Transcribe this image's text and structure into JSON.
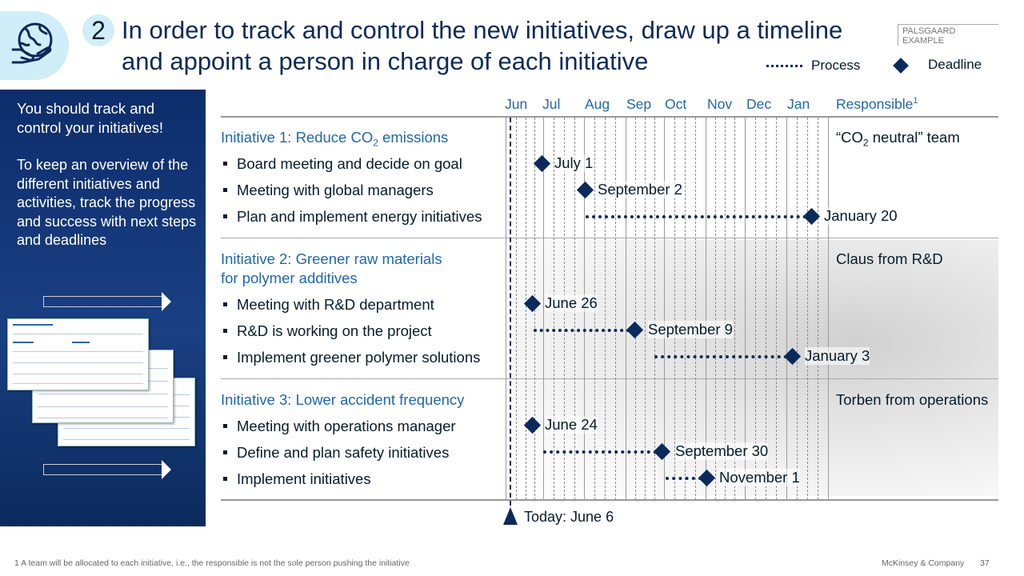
{
  "header": {
    "step_number": "2",
    "title": "In order to track and control the new initiatives, draw up a timeline and appoint a person in charge of each initiative",
    "tag": "PALSGAARD EXAMPLE",
    "icon": "globe-hand-icon"
  },
  "legend": {
    "process_label": "Process",
    "deadline_label": "Deadline"
  },
  "sidebar": {
    "heading": "You should track and control your initiatives!",
    "text": "To keep an overview of the different initiatives and activities, track the progress and success with next steps and deadlines"
  },
  "timeline": {
    "months": [
      "Jun",
      "Jul",
      "Aug",
      "Sep",
      "Oct",
      "Nov",
      "Dec",
      "Jan"
    ],
    "responsible_header": "Responsible",
    "responsible_footnote_marker": "1",
    "today_label": "Today: June 6"
  },
  "initiatives": [
    {
      "title_pre": "Initiative 1: Reduce CO",
      "title_sub": "2",
      "title_post": " emissions",
      "responsible_pre": "“CO",
      "responsible_sub": "2",
      "responsible_post": " neutral” team",
      "tasks": [
        {
          "label": "Board meeting and decide on goal",
          "deadline": "July 1"
        },
        {
          "label": "Meeting with global managers",
          "deadline": "September 2"
        },
        {
          "label": "Plan and implement energy initiatives",
          "deadline": "January 20"
        }
      ]
    },
    {
      "title_line1": "Initiative 2: Greener raw materials",
      "title_line2": "for polymer additives",
      "responsible": "Claus from R&D",
      "tasks": [
        {
          "label": "Meeting with R&D department",
          "deadline": "June 26"
        },
        {
          "label": "R&D is working on the project",
          "deadline": "September 9"
        },
        {
          "label": "Implement greener polymer solutions",
          "deadline": "January 3"
        }
      ]
    },
    {
      "title": "Initiative 3: Lower accident frequency",
      "responsible": "Torben from operations",
      "tasks": [
        {
          "label": "Meeting with operations manager",
          "deadline": "June 24"
        },
        {
          "label": "Define and plan safety initiatives",
          "deadline": "September 30"
        },
        {
          "label": "Implement initiatives",
          "deadline": "November 1"
        }
      ]
    }
  ],
  "footer": {
    "footnote": "1 A team will be allocated to each initiative, i.e., the responsible is not the sole person pushing the initiative",
    "company": "McKinsey & Company",
    "page": "37"
  },
  "colors": {
    "navy": "#0b2a5c",
    "accent_blue": "#1f67b1",
    "light_cyan": "#cfeef8"
  }
}
